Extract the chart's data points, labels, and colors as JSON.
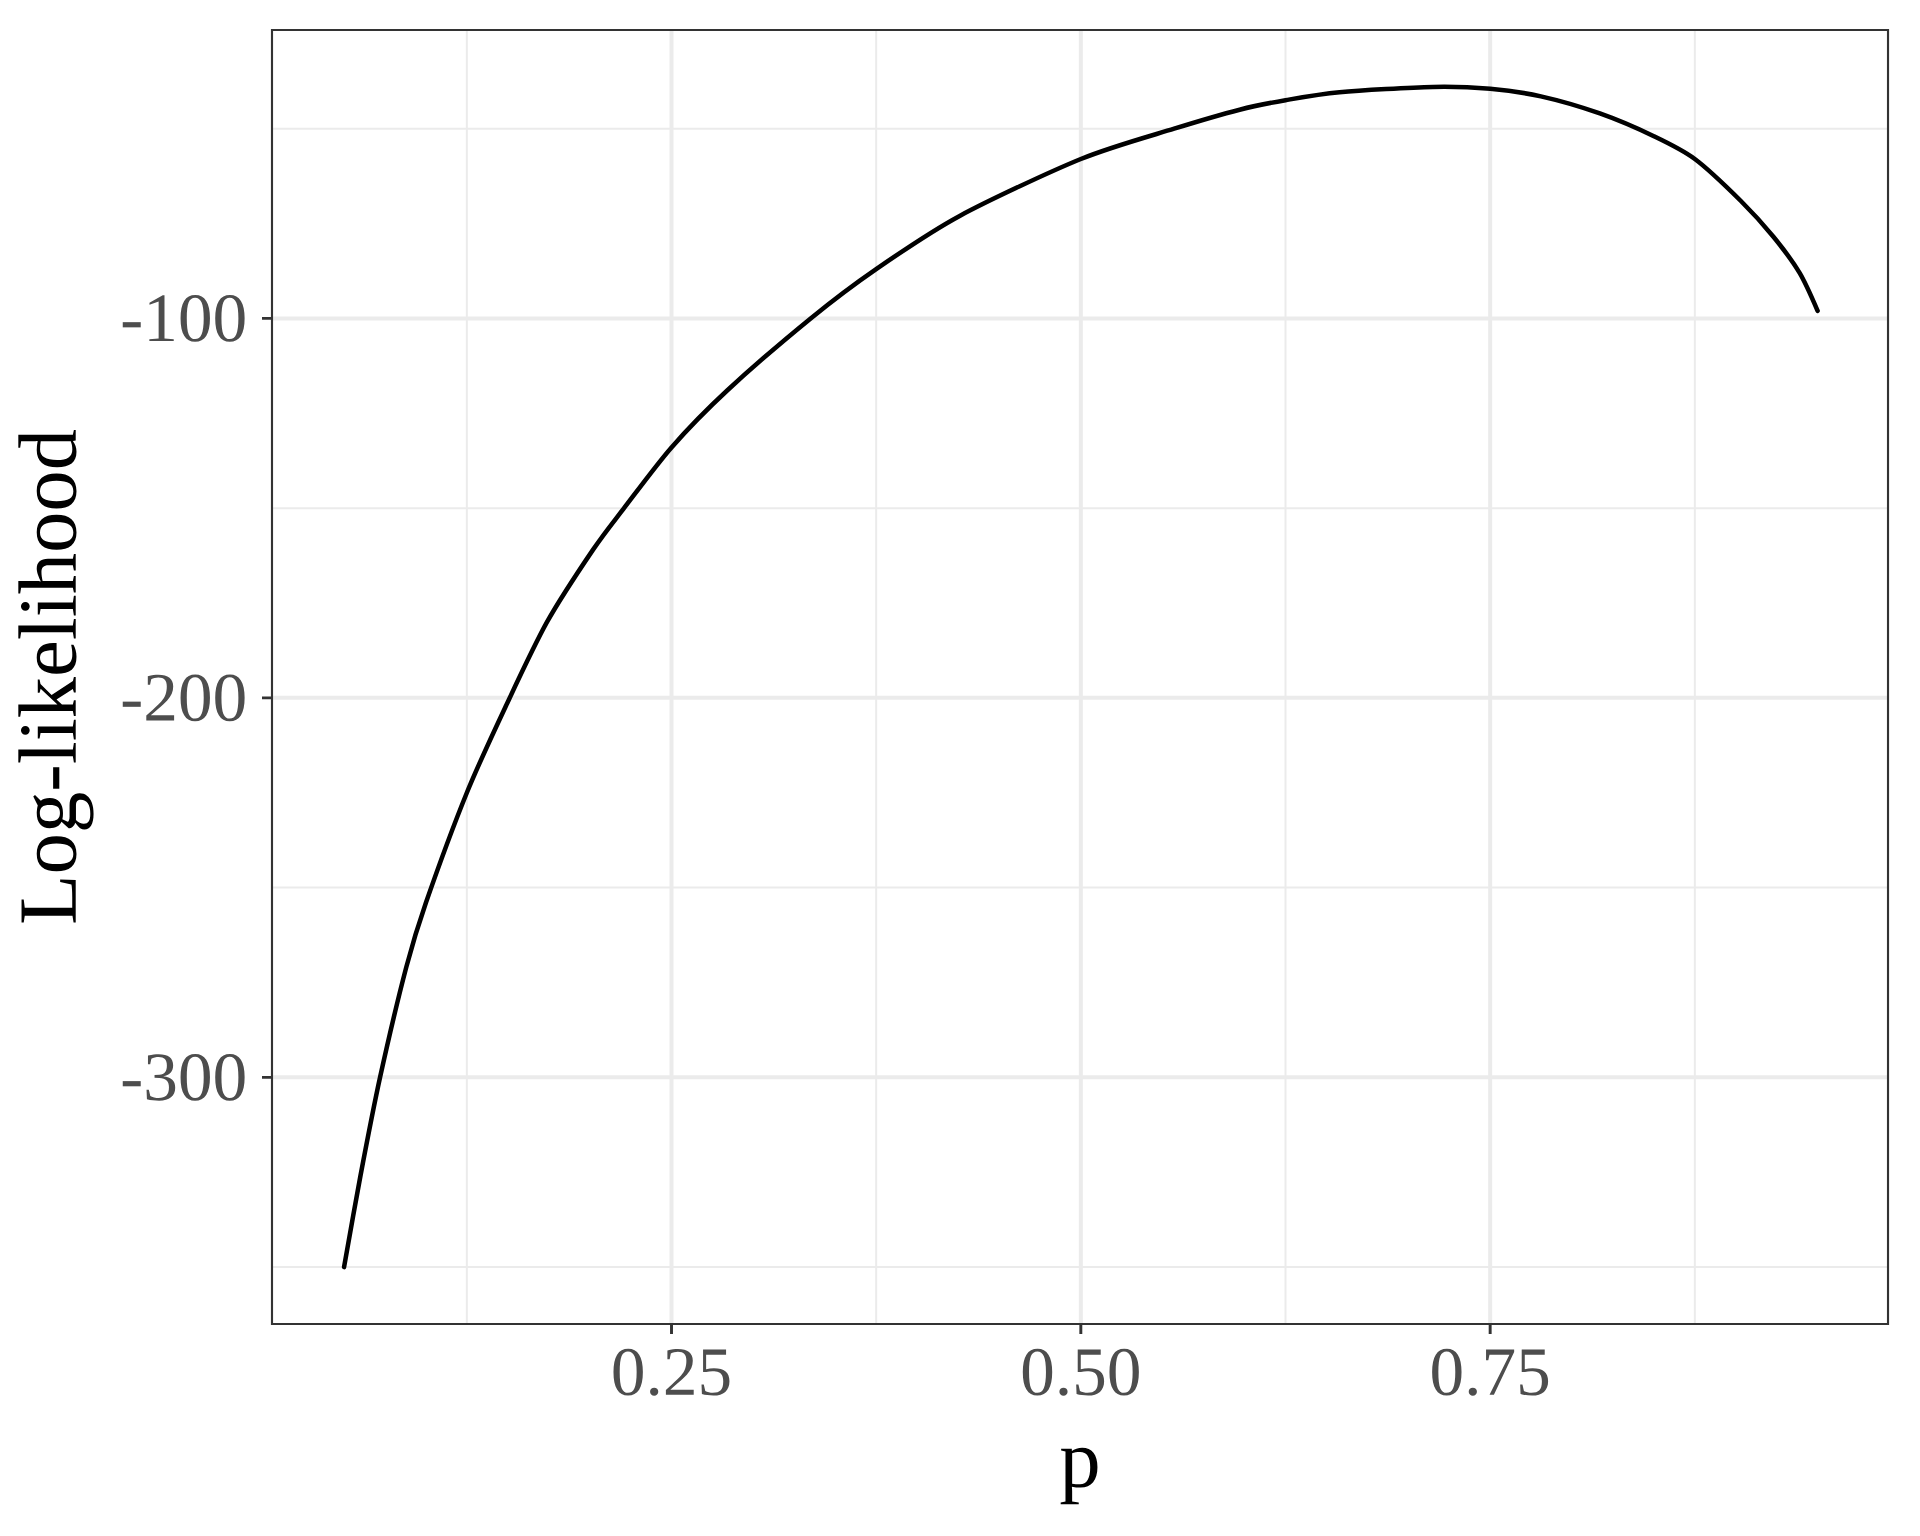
{
  "chart_data": {
    "type": "line",
    "xlabel": "p",
    "ylabel": "Log-likelihood",
    "x": [
      0.05,
      0.06,
      0.072,
      0.088,
      0.1,
      0.125,
      0.149,
      0.174,
      0.202,
      0.221,
      0.25,
      0.284,
      0.335,
      0.375,
      0.426,
      0.5,
      0.557,
      0.597,
      0.625,
      0.658,
      0.715,
      0.75,
      0.781,
      0.817,
      0.85,
      0.875,
      0.903,
      0.923,
      0.939,
      0.95
    ],
    "series": [
      {
        "color": "#000000",
        "values": [
          -350,
          -326,
          -300,
          -271,
          -254,
          -225,
          -202,
          -180,
          -161,
          -150,
          -134,
          -119,
          -100,
          -87,
          -73,
          -58,
          -50,
          -45,
          -42.5,
          -40.4,
          -39,
          -39.5,
          -41.5,
          -46,
          -52,
          -58,
          -69,
          -78.5,
          -88,
          -98
        ]
      }
    ],
    "xlim": [
      0.006,
      0.993
    ],
    "ylim": [
      -365,
      -24
    ],
    "xticks": [
      {
        "value": 0.25,
        "label": "0.25"
      },
      {
        "value": 0.5,
        "label": "0.50"
      },
      {
        "value": 0.75,
        "label": "0.75"
      }
    ],
    "yticks": [
      -300,
      -200,
      -100
    ],
    "grid": true
  }
}
